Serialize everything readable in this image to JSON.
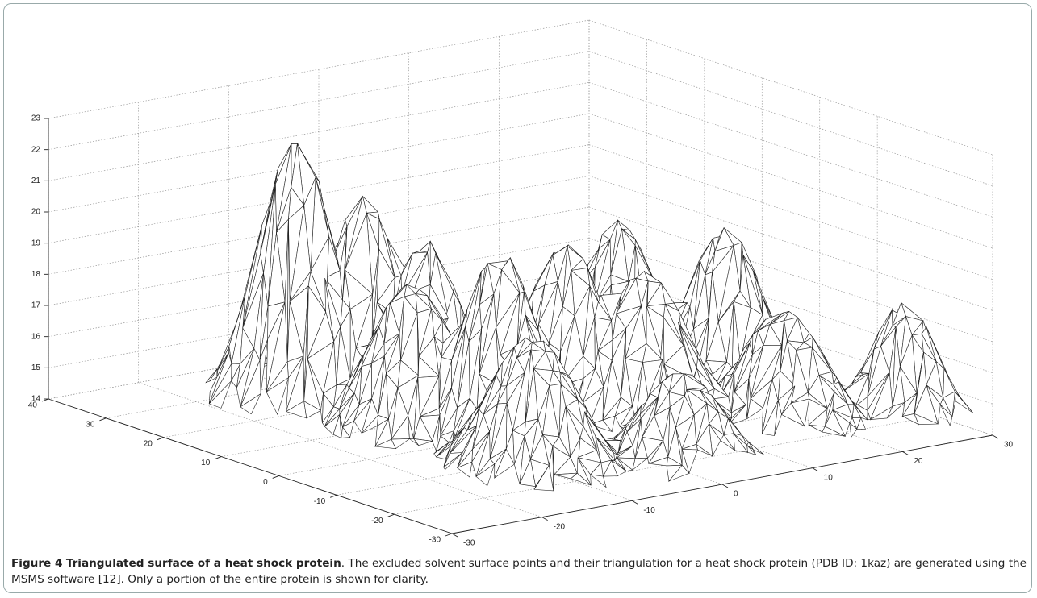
{
  "figure": {
    "label": "Figure 4",
    "title": "Triangulated surface of a heat shock protein",
    "caption": ". The excluded solvent surface points and their triangulation for a heat shock protein (PDB ID: 1kaz) are generated using the MSMS software [12]. Only a portion of the entire protein is shown for clarity."
  },
  "plot": {
    "z_ticks": [
      14,
      15,
      16,
      17,
      18,
      19,
      20,
      21,
      22,
      23
    ],
    "y_ticks": [
      40,
      30,
      20,
      10,
      0,
      -10,
      -20,
      -30
    ],
    "x_ticks": [
      -30,
      -20,
      -10,
      0,
      10,
      20,
      30
    ]
  }
}
